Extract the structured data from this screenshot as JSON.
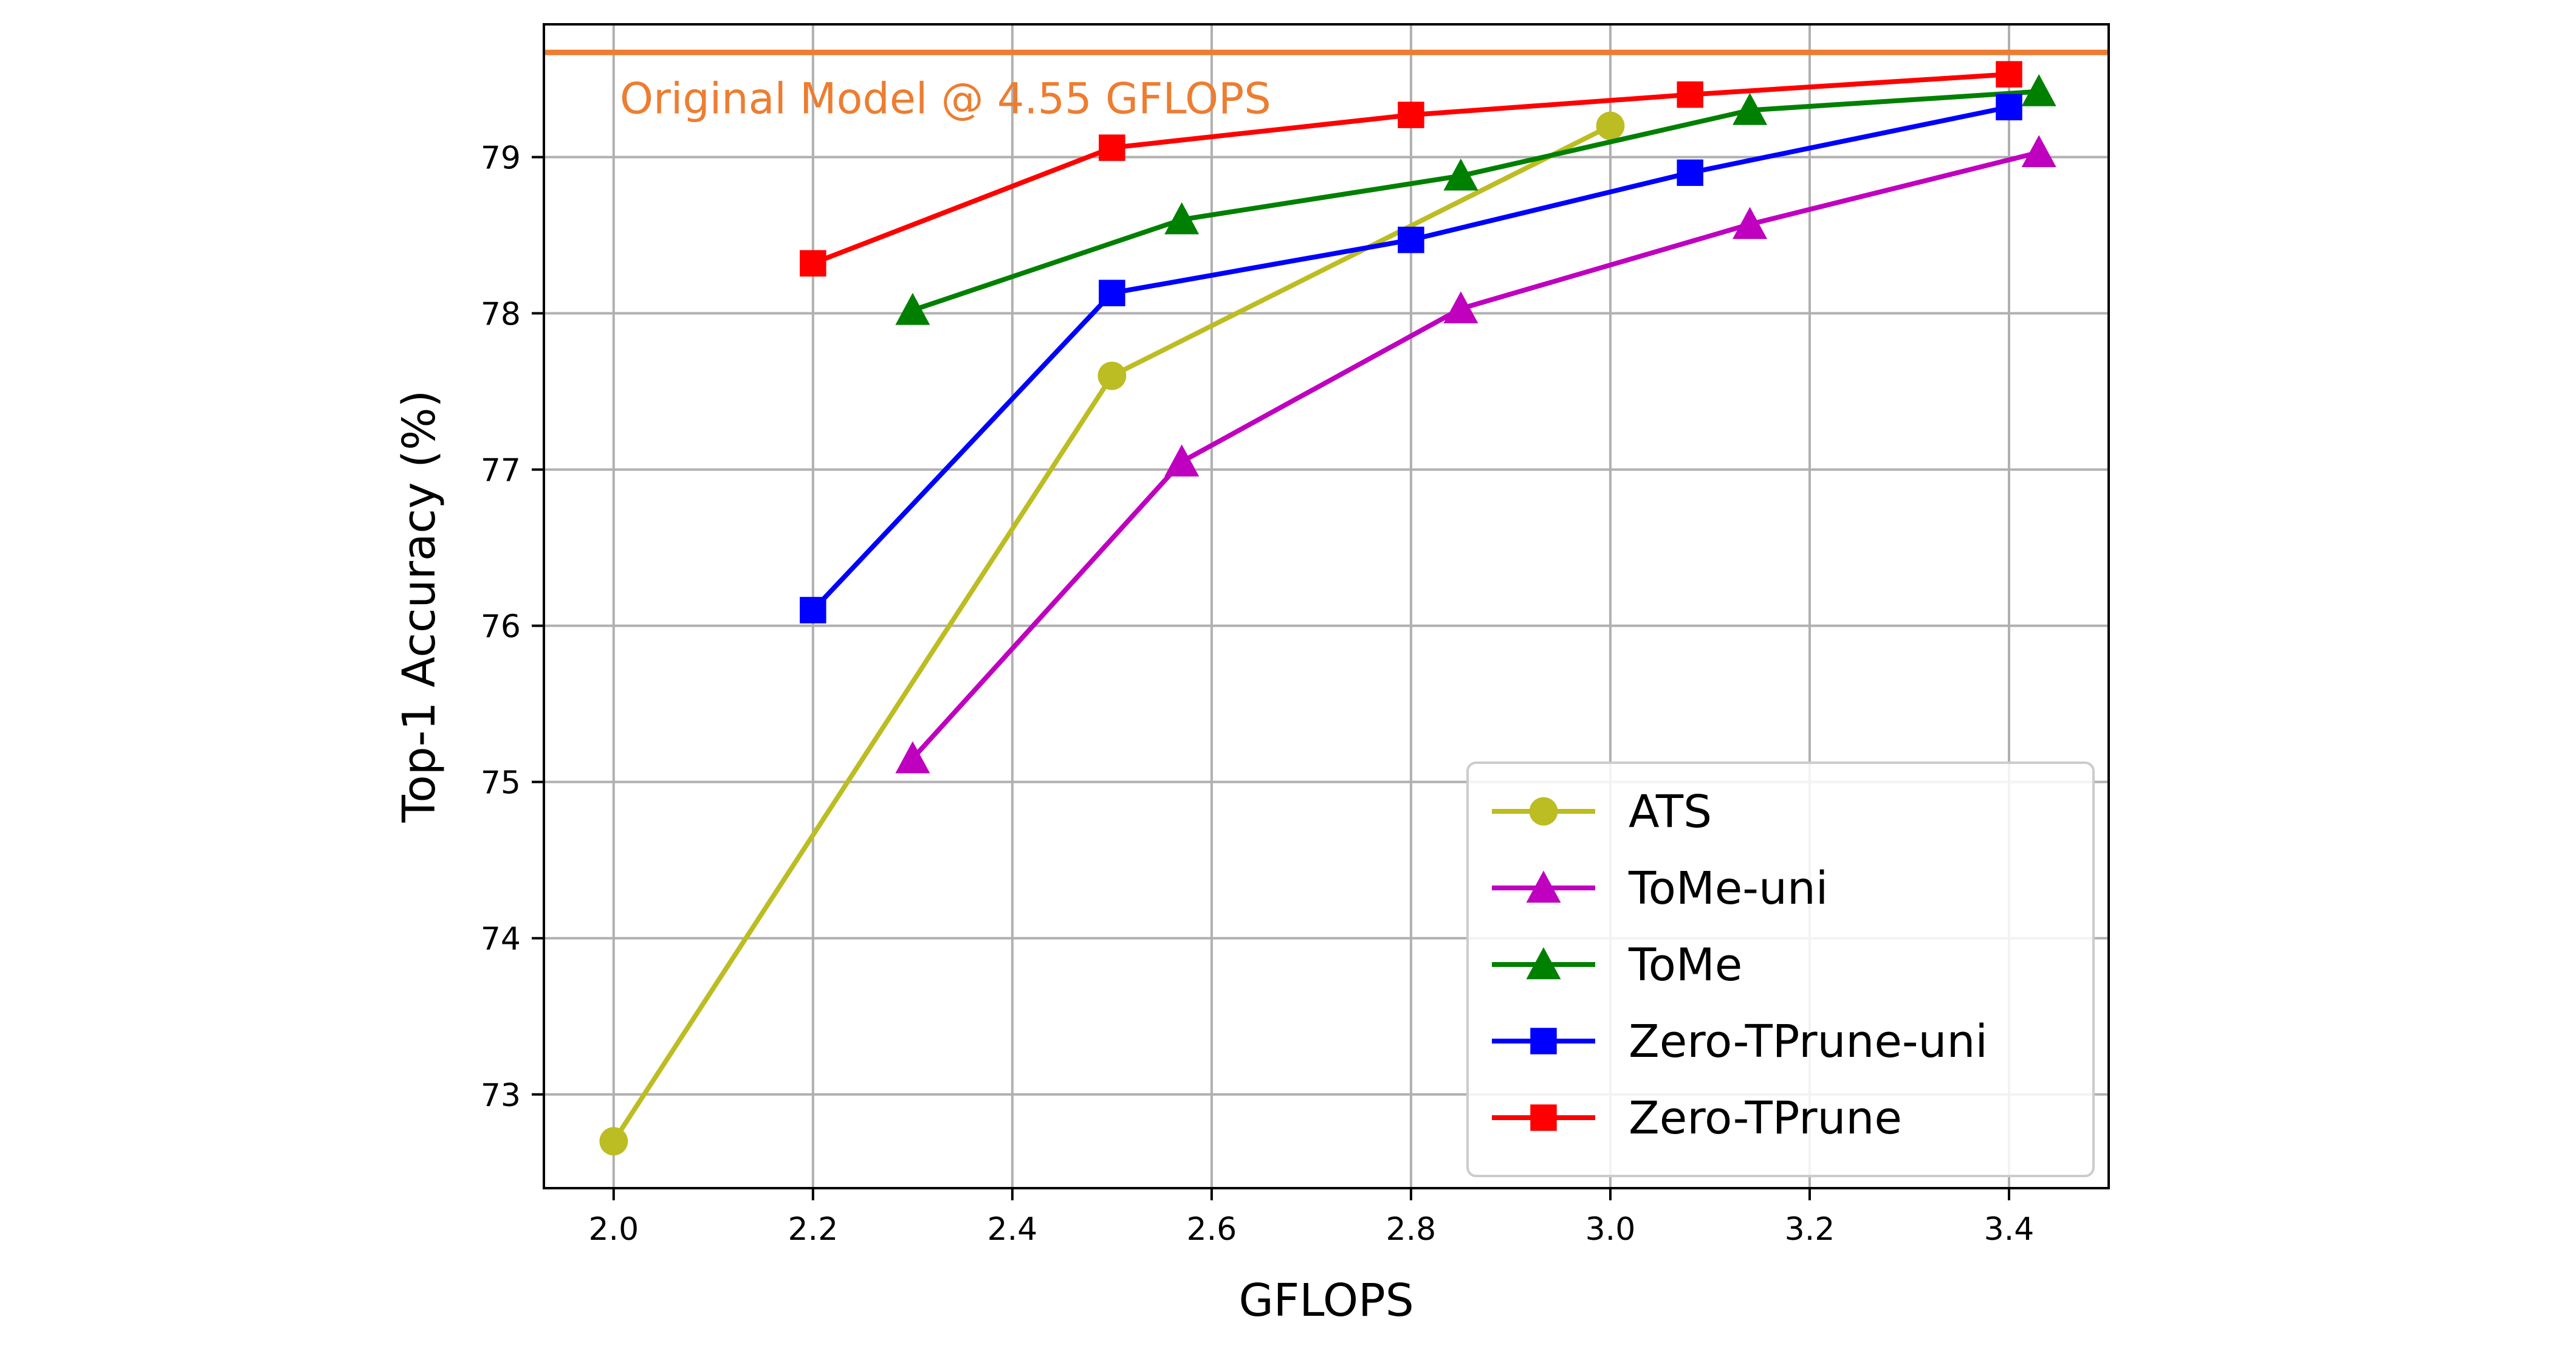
{
  "chart_data": {
    "type": "line",
    "xlabel": "GFLOPS",
    "ylabel": "Top-1 Accuracy (%)",
    "xlim": [
      1.93,
      3.5
    ],
    "ylim": [
      72.4,
      79.85
    ],
    "xticks": [
      "2.0",
      "2.2",
      "2.4",
      "2.6",
      "2.8",
      "3.0",
      "3.2",
      "3.4"
    ],
    "yticks": [
      "73",
      "74",
      "75",
      "76",
      "77",
      "78",
      "79"
    ],
    "grid": true,
    "legend_position": "lower-right",
    "reference_line": {
      "y": 79.67,
      "label": "Original Model @ 4.55 GFLOPS",
      "color": "#ED7D31"
    },
    "series": [
      {
        "name": "ATS",
        "color": "#BCBD22",
        "marker": "circle",
        "x": [
          2.0,
          2.5,
          3.0
        ],
        "y": [
          72.7,
          77.6,
          79.2
        ]
      },
      {
        "name": "ToMe-uni",
        "color": "#BF00BF",
        "marker": "triangle",
        "x": [
          2.3,
          2.57,
          2.85,
          3.14,
          3.43
        ],
        "y": [
          75.15,
          77.05,
          78.03,
          78.57,
          79.03
        ]
      },
      {
        "name": "ToMe",
        "color": "#008000",
        "marker": "triangle",
        "x": [
          2.3,
          2.57,
          2.85,
          3.14,
          3.43
        ],
        "y": [
          78.02,
          78.6,
          78.88,
          79.3,
          79.42
        ]
      },
      {
        "name": "Zero-TPrune-uni",
        "color": "#0000FF",
        "marker": "square",
        "x": [
          2.2,
          2.5,
          2.8,
          3.08,
          3.4
        ],
        "y": [
          76.1,
          78.13,
          78.47,
          78.9,
          79.32
        ]
      },
      {
        "name": "Zero-TPrune",
        "color": "#FF0000",
        "marker": "square",
        "x": [
          2.2,
          2.5,
          2.8,
          3.08,
          3.4
        ],
        "y": [
          78.32,
          79.06,
          79.27,
          79.4,
          79.53
        ]
      }
    ]
  }
}
